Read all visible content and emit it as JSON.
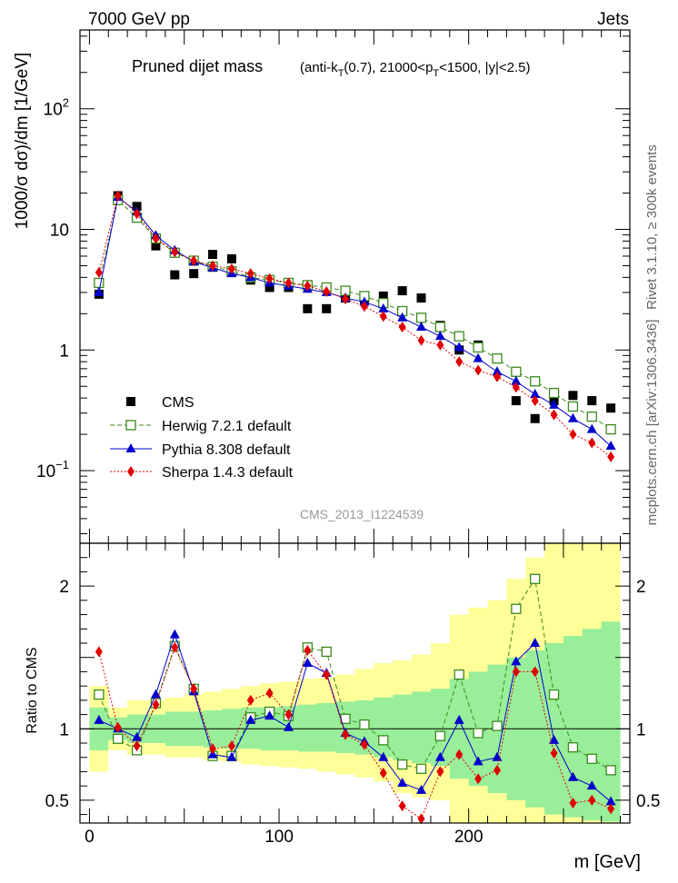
{
  "header": {
    "left": "7000 GeV pp",
    "right": "Jets"
  },
  "side_labels": {
    "upper": "Rivet 3.1.10, ≥ 300k events",
    "lower": "mcplots.cern.ch [arXiv:1306.3436]"
  },
  "watermark": "CMS_2013_I1224539",
  "colors": {
    "cms": "#000000",
    "herwig": "#3a8a1a",
    "pythia": "#0000cc",
    "sherpa": "#e00000",
    "band_yellow": "#ffff99",
    "band_green": "#99ee99"
  },
  "chart_data": [
    {
      "type": "scatter",
      "panel": "main",
      "title_main": "Pruned dijet mass",
      "title_sub_parts": [
        "(anti-k",
        "T",
        "(0.7), 21000<p",
        "T",
        "<1500, |y|<2.5)"
      ],
      "ylabel": "1000/σ dσ)/dm [1/GeV]",
      "yscale": "log",
      "ylim": [
        0.025,
        450
      ],
      "xlim": [
        -5,
        285
      ],
      "y_ticks": [
        {
          "value": 0.1,
          "base": "10",
          "exp": "−1"
        },
        {
          "value": 1,
          "base": "1",
          "exp": ""
        },
        {
          "value": 10,
          "base": "10",
          "exp": ""
        },
        {
          "value": 100,
          "base": "10",
          "exp": "2"
        }
      ],
      "x": [
        5,
        15,
        25,
        35,
        45,
        55,
        65,
        75,
        85,
        95,
        105,
        115,
        125,
        135,
        145,
        155,
        165,
        175,
        185,
        195,
        205,
        215,
        225,
        235,
        245,
        255,
        265,
        275
      ],
      "series": [
        {
          "name": "CMS",
          "style": "data",
          "values": [
            2.9,
            19.0,
            15.5,
            7.3,
            4.2,
            4.3,
            6.2,
            5.7,
            3.8,
            3.3,
            3.3,
            2.2,
            2.2,
            2.7,
            2.6,
            2.8,
            3.1,
            2.7,
            1.6,
            1.0,
            1.1,
            0.85,
            0.38,
            0.27,
            0.38,
            0.42,
            0.38,
            0.33
          ]
        },
        {
          "name": "Herwig 7.2.1 default",
          "style": "herwig",
          "values": [
            3.6,
            17.5,
            12.5,
            8.4,
            6.4,
            5.5,
            4.9,
            4.5,
            4.0,
            3.8,
            3.6,
            3.45,
            3.3,
            3.1,
            2.8,
            2.45,
            2.1,
            1.85,
            1.55,
            1.3,
            1.05,
            0.85,
            0.66,
            0.55,
            0.44,
            0.34,
            0.28,
            0.22
          ]
        },
        {
          "name": "Pythia 8.308 default",
          "style": "pythia",
          "values": [
            3.0,
            18.5,
            14.0,
            8.9,
            6.7,
            5.4,
            4.8,
            4.3,
            4.0,
            3.6,
            3.4,
            3.2,
            3.0,
            2.7,
            2.5,
            2.2,
            1.85,
            1.55,
            1.3,
            1.05,
            0.85,
            0.66,
            0.55,
            0.43,
            0.35,
            0.27,
            0.22,
            0.16
          ]
        },
        {
          "name": "Sherpa 1.4.3 default",
          "style": "sherpa",
          "values": [
            4.4,
            19.0,
            13.5,
            8.4,
            6.5,
            5.5,
            5.0,
            4.7,
            4.3,
            3.9,
            3.6,
            3.4,
            3.05,
            2.65,
            2.3,
            1.9,
            1.55,
            1.2,
            1.1,
            0.8,
            0.68,
            0.6,
            0.49,
            0.38,
            0.29,
            0.2,
            0.17,
            0.13
          ]
        }
      ],
      "legend": {
        "position": "lower-left",
        "entries": [
          "CMS",
          "Herwig 7.2.1 default",
          "Pythia 8.308 default",
          "Sherpa 1.4.3 default"
        ]
      }
    },
    {
      "type": "line",
      "panel": "ratio",
      "ylabel": "Ratio to CMS",
      "xlabel": "m [GeV]",
      "ylim": [
        0.34,
        2.3
      ],
      "xlim": [
        -5,
        285
      ],
      "y_ticks": [
        0.5,
        1,
        2
      ],
      "x_ticks": [
        0,
        100,
        200
      ],
      "x": [
        5,
        15,
        25,
        35,
        45,
        55,
        65,
        75,
        85,
        95,
        105,
        115,
        125,
        135,
        145,
        155,
        165,
        175,
        185,
        195,
        205,
        215,
        225,
        235,
        245,
        255,
        265,
        275
      ],
      "band_yellow": {
        "low": [
          0.7,
          0.85,
          0.82,
          0.82,
          0.8,
          0.8,
          0.78,
          0.77,
          0.75,
          0.74,
          0.73,
          0.72,
          0.7,
          0.68,
          0.66,
          0.63,
          0.55,
          0.52,
          0.5,
          0.3,
          0.3,
          0.3,
          0.3,
          0.3,
          0.3,
          0.3,
          0.3,
          0.3
        ],
        "high": [
          1.3,
          1.15,
          1.2,
          1.2,
          1.22,
          1.24,
          1.26,
          1.28,
          1.3,
          1.32,
          1.33,
          1.35,
          1.36,
          1.38,
          1.42,
          1.46,
          1.48,
          1.52,
          1.6,
          1.8,
          1.85,
          1.9,
          2.05,
          2.2,
          2.4,
          2.5,
          2.6,
          2.6
        ]
      },
      "band_green": {
        "low": [
          0.85,
          0.92,
          0.9,
          0.9,
          0.88,
          0.88,
          0.87,
          0.86,
          0.86,
          0.85,
          0.85,
          0.84,
          0.84,
          0.83,
          0.82,
          0.8,
          0.78,
          0.76,
          0.74,
          0.65,
          0.6,
          0.55,
          0.5,
          0.45,
          0.4,
          0.38,
          0.36,
          0.35
        ],
        "high": [
          1.15,
          1.08,
          1.1,
          1.1,
          1.12,
          1.12,
          1.13,
          1.14,
          1.15,
          1.15,
          1.16,
          1.17,
          1.18,
          1.19,
          1.2,
          1.22,
          1.24,
          1.26,
          1.28,
          1.35,
          1.4,
          1.45,
          1.5,
          1.55,
          1.6,
          1.65,
          1.7,
          1.75
        ]
      },
      "series": [
        {
          "name": "Herwig 7.2.1 default",
          "style": "herwig",
          "values": [
            1.24,
            0.93,
            0.85,
            1.18,
            1.58,
            1.28,
            0.81,
            0.81,
            1.08,
            1.12,
            1.09,
            1.57,
            1.54,
            1.07,
            1.03,
            0.92,
            0.75,
            0.72,
            0.95,
            1.38,
            0.97,
            1.02,
            1.84,
            2.05,
            1.24,
            0.87,
            0.79,
            0.71
          ]
        },
        {
          "name": "Pythia 8.308 default",
          "style": "pythia",
          "values": [
            1.06,
            1.0,
            0.94,
            1.24,
            1.66,
            1.26,
            0.82,
            0.8,
            1.06,
            1.09,
            1.01,
            1.46,
            1.39,
            0.97,
            0.91,
            0.8,
            0.62,
            0.57,
            0.8,
            1.06,
            0.77,
            0.8,
            1.47,
            1.6,
            0.92,
            0.66,
            0.6,
            0.49
          ]
        },
        {
          "name": "Sherpa 1.4.3 default",
          "style": "sherpa",
          "values": [
            1.54,
            1.01,
            0.88,
            1.17,
            1.57,
            1.28,
            0.86,
            0.88,
            1.2,
            1.25,
            1.1,
            1.55,
            1.38,
            0.96,
            0.89,
            0.69,
            0.46,
            0.37,
            0.7,
            0.82,
            0.65,
            0.71,
            1.4,
            1.4,
            0.83,
            0.48,
            0.5,
            0.44
          ]
        }
      ]
    }
  ]
}
